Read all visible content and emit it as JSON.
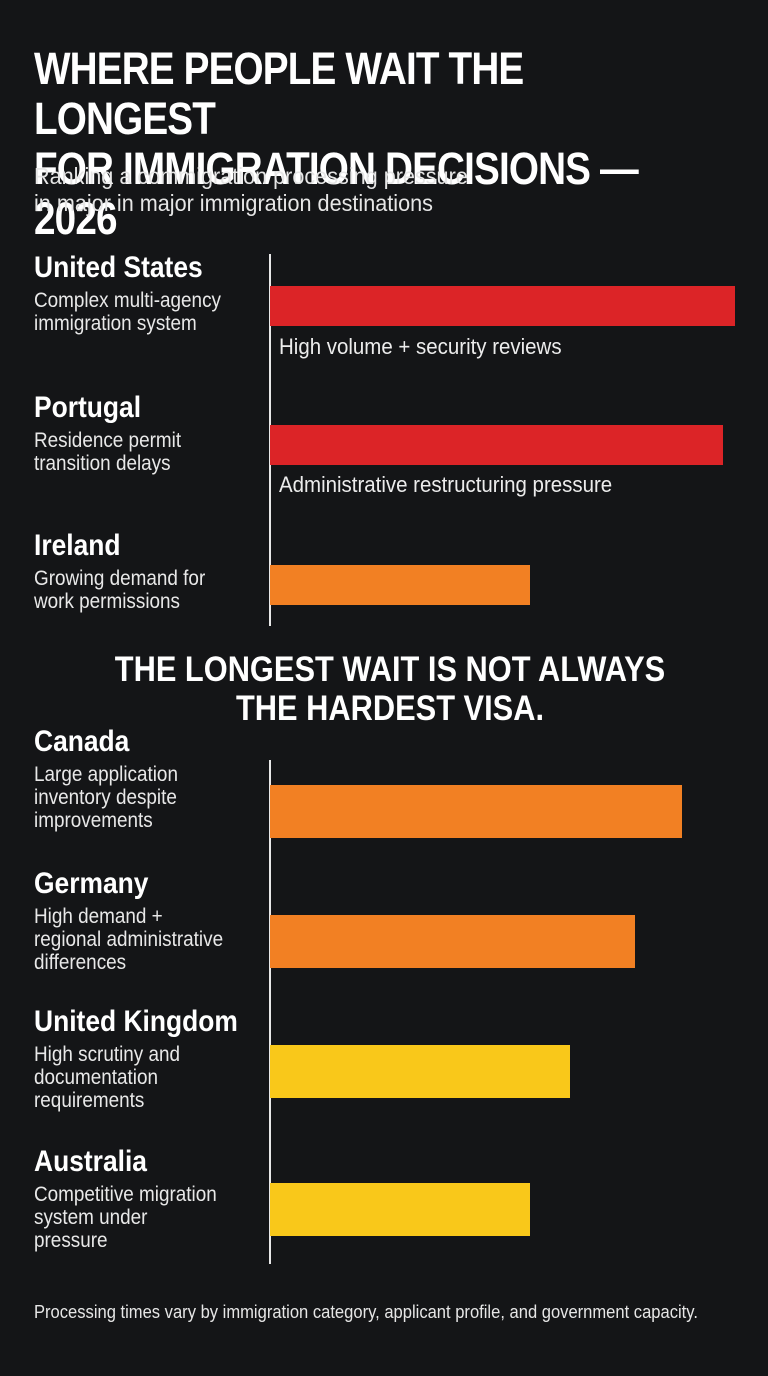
{
  "header": {
    "title_line1": "WHERE PEOPLE WAIT THE LONGEST",
    "title_line2": "FOR IMMIGRATION DECISIONS — 2026",
    "subtitle_line1": "Ranking a commigration processing pressure",
    "subtitle_line2": "in major in major immigration destinations"
  },
  "callout": {
    "line1": "THE LONGEST WAIT IS NOT ALWAYS",
    "line2": "THE HARDEST VISA."
  },
  "footnote": "Processing times vary by immigration category, applicant profile, and government capacity.",
  "colors": {
    "background": "#141517",
    "red": "#dc2427",
    "orange": "#f28023",
    "yellow": "#f9c81a",
    "axis": "#e8e8e8"
  },
  "chart_data": [
    {
      "type": "bar",
      "orientation": "horizontal",
      "categories": [
        "United States",
        "Portugal",
        "Ireland"
      ],
      "descriptions": [
        [
          "Complex multi-agency",
          "immigration system"
        ],
        [
          "Residence permit",
          "transition delays"
        ],
        [
          "Growing demand for",
          "work permissions"
        ]
      ],
      "notes": [
        "High volume + security reviews",
        "Administrative restructuring pressure",
        ""
      ],
      "values": [
        100,
        97.5,
        56
      ],
      "colors": [
        "#dc2427",
        "#dc2427",
        "#f28023"
      ],
      "xlim": [
        0,
        100
      ],
      "grid": false
    },
    {
      "type": "bar",
      "orientation": "horizontal",
      "categories": [
        "Canada",
        "Germany",
        "United Kingdom",
        "Australia"
      ],
      "descriptions": [
        [
          "Large application",
          "inventory despite",
          "improvements"
        ],
        [
          "High demand +",
          "regional administrative",
          "differences"
        ],
        [
          "High scrutiny and",
          "documentation",
          "requirements"
        ],
        [
          "Competitive migration",
          "system under",
          "pressure"
        ]
      ],
      "notes": [
        "",
        "",
        "",
        ""
      ],
      "values": [
        88.5,
        78.5,
        64.5,
        56
      ],
      "colors": [
        "#f28023",
        "#f28023",
        "#f9c81a",
        "#f9c81a"
      ],
      "xlim": [
        0,
        100
      ],
      "grid": false
    }
  ]
}
